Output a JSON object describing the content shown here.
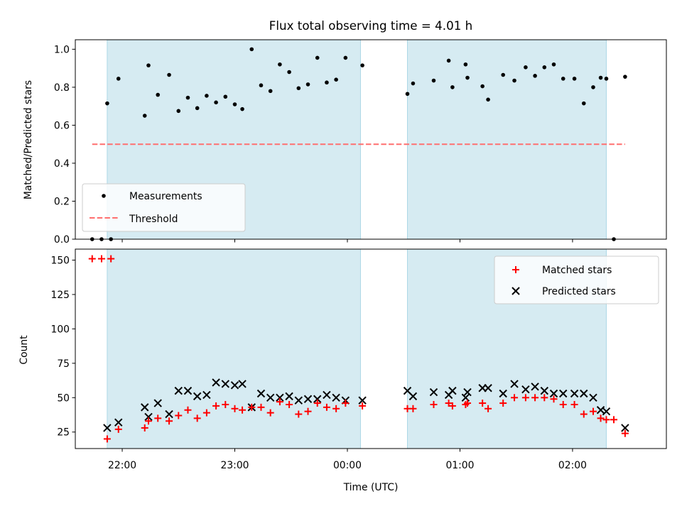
{
  "chart_data": [
    {
      "type": "scatter",
      "title": "Flux total observing time = 4.01 h",
      "ylabel": "Matched/Predicted stars",
      "ylim": [
        0,
        1.05
      ],
      "yticks": [
        "0.0",
        "0.2",
        "0.4",
        "0.6",
        "0.8",
        "1.0"
      ],
      "xlim": [
        "21:35",
        "02:50"
      ],
      "legend_position": "lower-left",
      "shaded_intervals": [
        [
          "21:52",
          "00:07"
        ],
        [
          "00:32",
          "02:18"
        ]
      ],
      "series": [
        {
          "name": "Measurements",
          "color": "#000000",
          "points": [
            [
              "21:44",
              0
            ],
            [
              "21:49",
              0
            ],
            [
              "21:54",
              0
            ],
            [
              "21:52",
              0.715
            ],
            [
              "21:58",
              0.845
            ],
            [
              "22:12",
              0.65
            ],
            [
              "22:14",
              0.915
            ],
            [
              "22:19",
              0.76
            ],
            [
              "22:25",
              0.865
            ],
            [
              "22:30",
              0.675
            ],
            [
              "22:35",
              0.745
            ],
            [
              "22:40",
              0.69
            ],
            [
              "22:45",
              0.755
            ],
            [
              "22:50",
              0.72
            ],
            [
              "22:55",
              0.75
            ],
            [
              "23:00",
              0.71
            ],
            [
              "23:04",
              0.685
            ],
            [
              "23:09",
              1.0
            ],
            [
              "23:14",
              0.81
            ],
            [
              "23:19",
              0.78
            ],
            [
              "23:24",
              0.92
            ],
            [
              "23:29",
              0.88
            ],
            [
              "23:34",
              0.795
            ],
            [
              "23:39",
              0.815
            ],
            [
              "23:44",
              0.955
            ],
            [
              "23:49",
              0.825
            ],
            [
              "23:54",
              0.84
            ],
            [
              "23:59",
              0.955
            ],
            [
              "00:08",
              0.915
            ],
            [
              "00:32",
              0.765
            ],
            [
              "00:35",
              0.82
            ],
            [
              "00:46",
              0.835
            ],
            [
              "00:54",
              0.94
            ],
            [
              "00:56",
              0.8
            ],
            [
              "01:03",
              0.92
            ],
            [
              "01:04",
              0.85
            ],
            [
              "01:12",
              0.805
            ],
            [
              "01:15",
              0.735
            ],
            [
              "01:23",
              0.865
            ],
            [
              "01:29",
              0.835
            ],
            [
              "01:35",
              0.905
            ],
            [
              "01:40",
              0.86
            ],
            [
              "01:45",
              0.905
            ],
            [
              "01:50",
              0.92
            ],
            [
              "01:55",
              0.845
            ],
            [
              "02:01",
              0.845
            ],
            [
              "02:06",
              0.715
            ],
            [
              "02:11",
              0.8
            ],
            [
              "02:15",
              0.85
            ],
            [
              "02:18",
              0.845
            ],
            [
              "02:22",
              0
            ],
            [
              "02:28",
              0.855
            ]
          ]
        },
        {
          "name": "Threshold",
          "color": "#ff6f6f",
          "style": "dashed",
          "points": [
            [
              "21:44",
              0.5
            ],
            [
              "02:28",
              0.5
            ]
          ]
        }
      ]
    },
    {
      "type": "scatter",
      "xlabel": "Time (UTC)",
      "ylabel": "Count",
      "ylim": [
        13,
        158
      ],
      "yticks": [
        "25",
        "50",
        "75",
        "100",
        "125",
        "150"
      ],
      "xticks": [
        "22:00",
        "23:00",
        "00:00",
        "01:00",
        "02:00"
      ],
      "xlim": [
        "21:35",
        "02:50"
      ],
      "legend_position": "top-right",
      "shaded_intervals": [
        [
          "21:52",
          "00:07"
        ],
        [
          "00:32",
          "02:18"
        ]
      ],
      "series": [
        {
          "name": "Matched stars",
          "marker": "+",
          "color": "#ff0000",
          "points": [
            [
              "21:44",
              151
            ],
            [
              "21:49",
              151
            ],
            [
              "21:54",
              151
            ],
            [
              "21:52",
              20
            ],
            [
              "21:58",
              27
            ],
            [
              "22:12",
              28
            ],
            [
              "22:14",
              33
            ],
            [
              "22:19",
              35
            ],
            [
              "22:25",
              33
            ],
            [
              "22:30",
              37
            ],
            [
              "22:35",
              41
            ],
            [
              "22:40",
              35
            ],
            [
              "22:45",
              39
            ],
            [
              "22:50",
              44
            ],
            [
              "22:55",
              45
            ],
            [
              "23:00",
              42
            ],
            [
              "23:04",
              41
            ],
            [
              "23:09",
              43
            ],
            [
              "23:14",
              43
            ],
            [
              "23:19",
              39
            ],
            [
              "23:24",
              47
            ],
            [
              "23:29",
              45
            ],
            [
              "23:34",
              38
            ],
            [
              "23:39",
              40
            ],
            [
              "23:44",
              46
            ],
            [
              "23:49",
              43
            ],
            [
              "23:54",
              42
            ],
            [
              "23:59",
              46
            ],
            [
              "00:08",
              44
            ],
            [
              "00:32",
              42
            ],
            [
              "00:35",
              42
            ],
            [
              "00:46",
              45
            ],
            [
              "00:54",
              46
            ],
            [
              "00:56",
              44
            ],
            [
              "01:03",
              45
            ],
            [
              "01:04",
              46
            ],
            [
              "01:12",
              46
            ],
            [
              "01:15",
              42
            ],
            [
              "01:23",
              46
            ],
            [
              "01:29",
              50
            ],
            [
              "01:35",
              50
            ],
            [
              "01:40",
              50
            ],
            [
              "01:45",
              50
            ],
            [
              "01:50",
              49
            ],
            [
              "01:55",
              45
            ],
            [
              "02:01",
              45
            ],
            [
              "02:06",
              38
            ],
            [
              "02:11",
              40
            ],
            [
              "02:15",
              35
            ],
            [
              "02:18",
              34
            ],
            [
              "02:22",
              34
            ],
            [
              "02:28",
              24
            ]
          ]
        },
        {
          "name": "Predicted stars",
          "marker": "x",
          "color": "#000000",
          "points": [
            [
              "21:52",
              28
            ],
            [
              "21:58",
              32
            ],
            [
              "22:12",
              43
            ],
            [
              "22:14",
              36
            ],
            [
              "22:19",
              46
            ],
            [
              "22:25",
              38
            ],
            [
              "22:30",
              55
            ],
            [
              "22:35",
              55
            ],
            [
              "22:40",
              51
            ],
            [
              "22:45",
              52
            ],
            [
              "22:50",
              61
            ],
            [
              "22:55",
              60
            ],
            [
              "23:00",
              59
            ],
            [
              "23:04",
              60
            ],
            [
              "23:09",
              43
            ],
            [
              "23:14",
              53
            ],
            [
              "23:19",
              50
            ],
            [
              "23:24",
              50
            ],
            [
              "23:29",
              51
            ],
            [
              "23:34",
              48
            ],
            [
              "23:39",
              49
            ],
            [
              "23:44",
              49
            ],
            [
              "23:49",
              52
            ],
            [
              "23:54",
              50
            ],
            [
              "23:59",
              48
            ],
            [
              "00:08",
              48
            ],
            [
              "00:32",
              55
            ],
            [
              "00:35",
              51
            ],
            [
              "00:46",
              54
            ],
            [
              "00:54",
              52
            ],
            [
              "00:56",
              55
            ],
            [
              "01:03",
              50
            ],
            [
              "01:04",
              54
            ],
            [
              "01:12",
              57
            ],
            [
              "01:15",
              57
            ],
            [
              "01:23",
              53
            ],
            [
              "01:29",
              60
            ],
            [
              "01:35",
              56
            ],
            [
              "01:40",
              58
            ],
            [
              "01:45",
              55
            ],
            [
              "01:50",
              53
            ],
            [
              "01:55",
              53
            ],
            [
              "02:01",
              53
            ],
            [
              "02:06",
              53
            ],
            [
              "02:11",
              50
            ],
            [
              "02:15",
              41
            ],
            [
              "02:18",
              40
            ],
            [
              "02:28",
              28
            ]
          ]
        }
      ]
    }
  ]
}
